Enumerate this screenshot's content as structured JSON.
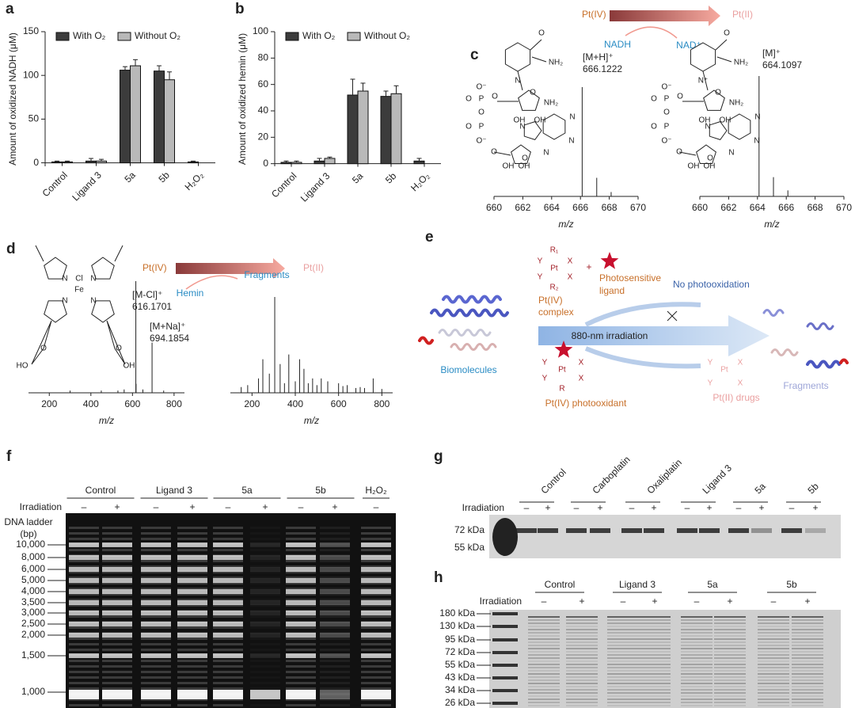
{
  "chart_data": [
    {
      "panel": "a",
      "type": "bar",
      "ylabel": "Amount of oxidized NADH (μM)",
      "categories": [
        "Control",
        "Ligand 3",
        "5a",
        "5b",
        "H₂O₂"
      ],
      "series": [
        {
          "name": "With O₂",
          "color": "#3c3c3c",
          "values": [
            1,
            2,
            106,
            105,
            1
          ],
          "errors": [
            1,
            3,
            4,
            6,
            1
          ]
        },
        {
          "name": "Without O₂",
          "color": "#b9b9b9",
          "values": [
            1,
            2,
            111,
            95,
            null
          ],
          "errors": [
            1,
            2,
            7,
            9,
            null
          ]
        }
      ],
      "ylim": [
        -4,
        150
      ],
      "yticks": [
        0,
        50,
        100,
        150
      ],
      "legend": "top"
    },
    {
      "panel": "b",
      "type": "bar",
      "ylabel": "Amount of oxidized hemin (μM)",
      "categories": [
        "Control",
        "Ligand 3",
        "5a",
        "5b",
        "H₂O₂"
      ],
      "series": [
        {
          "name": "With O₂",
          "color": "#3c3c3c",
          "values": [
            1,
            2,
            52,
            51,
            2
          ],
          "errors": [
            1,
            2,
            12,
            4,
            2
          ]
        },
        {
          "name": "Without O₂",
          "color": "#b9b9b9",
          "values": [
            1,
            4,
            55,
            53,
            null
          ],
          "errors": [
            1,
            1,
            6,
            6,
            null
          ]
        }
      ],
      "ylim": [
        -2,
        100
      ],
      "yticks": [
        0,
        20,
        40,
        60,
        80,
        100
      ],
      "legend": "top"
    },
    {
      "panel": "c",
      "type": "stem",
      "x": [
        666.12,
        667.13,
        668.13
      ],
      "values": [
        100,
        17,
        4
      ],
      "xlim": [
        660,
        670
      ],
      "xticks": [
        660,
        662,
        664,
        666,
        668,
        670
      ],
      "xlabel": "m/z",
      "annotations": [
        {
          "ion": "[M+H]⁺",
          "mz": 666.1222
        }
      ]
    },
    {
      "type": "stem",
      "x": [
        664.11,
        665.11,
        666.11
      ],
      "values": [
        100,
        16,
        5
      ],
      "xlim": [
        660,
        670
      ],
      "xticks": [
        660,
        662,
        664,
        666,
        668,
        670
      ],
      "xlabel": "m/z",
      "annotations": [
        {
          "ion": "[M]⁺",
          "mz": 664.1097
        }
      ]
    },
    {
      "panel": "d",
      "type": "stem",
      "x": [
        616.17,
        617.17,
        694.19,
        300,
        450,
        530,
        560,
        650,
        750
      ],
      "values": [
        100,
        8,
        45,
        2,
        2,
        2,
        3,
        3,
        2
      ],
      "xlim": [
        100,
        850
      ],
      "xticks": [
        200,
        400,
        600,
        800
      ],
      "xlabel": "m/z",
      "annotations": [
        {
          "ion": "[M-Cl]⁺",
          "mz": 616.1701
        },
        {
          "ion": "[M+Na]⁺",
          "mz": 694.1854
        }
      ]
    },
    {
      "type": "stem",
      "x": [
        150,
        180,
        230,
        250,
        280,
        305,
        330,
        350,
        370,
        400,
        420,
        440,
        460,
        480,
        500,
        520,
        550,
        600,
        620,
        640,
        680,
        700,
        720,
        760,
        800
      ],
      "values": [
        6,
        8,
        15,
        35,
        20,
        100,
        30,
        10,
        40,
        12,
        35,
        25,
        10,
        15,
        8,
        15,
        12,
        10,
        7,
        8,
        5,
        6,
        5,
        15,
        4
      ],
      "xlim": [
        100,
        850
      ],
      "xticks": [
        200,
        400,
        600,
        800
      ],
      "xlabel": "m/z"
    }
  ],
  "panel_c": {
    "oxidant": "Pt(IV)",
    "reduced": "Pt(II)",
    "substrate": "NADH",
    "product": "NAD⁺",
    "nadh_atoms": [
      "O",
      "NH₂",
      "N",
      "O",
      "O⁻",
      "O",
      "P",
      "O",
      "O",
      "O",
      "P",
      "O⁻",
      "O",
      "OH",
      "OH",
      "NH₂",
      "N",
      "N",
      "N",
      "N",
      "O",
      "OH",
      "OH"
    ],
    "nad_atoms": [
      "O",
      "NH₂",
      "N⁺",
      "O",
      "O⁻",
      "O",
      "P",
      "O",
      "O",
      "O",
      "P",
      "O⁻",
      "O",
      "OH",
      "OH",
      "NH₂",
      "N",
      "N",
      "N",
      "N",
      "O",
      "OH",
      "OH"
    ]
  },
  "panel_d": {
    "oxidant": "Pt(IV)",
    "reduced": "Pt(II)",
    "substrate": "Hemin",
    "product": "Fragments",
    "hemin_atoms": [
      "Cl",
      "Fe",
      "N",
      "N",
      "N",
      "N",
      "HO",
      "O",
      "O",
      "OH"
    ]
  },
  "panel_e": {
    "label": "e",
    "complex_atoms": [
      "R₁",
      "Y",
      "Pt",
      "X",
      "Y",
      "X",
      "R₂"
    ],
    "plus": "+",
    "ligand_name": [
      "Photosensitive",
      "ligand"
    ],
    "complex_name": [
      "Pt(IV)",
      "complex"
    ],
    "no_reaction": "No photooxidation",
    "light": "880-nm irradiation",
    "biomolecules": "Biomolecules",
    "oxidant_atoms": [
      "Y",
      "Pt",
      "X",
      "Y",
      "X",
      "R"
    ],
    "oxidant_name": "Pt(IV) photooxidant",
    "drug_atoms": [
      "Y",
      "Pt",
      "X",
      "Y",
      "X"
    ],
    "drug_name": "Pt(II) drugs",
    "fragments": "Fragments"
  },
  "panel_f": {
    "label": "f",
    "groups": [
      "Control",
      "Ligand 3",
      "5a",
      "5b",
      "H₂O₂"
    ],
    "irradiation": "Irradiation",
    "signs": [
      "–",
      "+",
      "–",
      "+",
      "–",
      "+",
      "–",
      "+",
      "–"
    ],
    "ladder_title": [
      "DNA ladder",
      "(bp)"
    ],
    "ladder": [
      "10,000",
      "8,000",
      "6,000",
      "5,000",
      "4,000",
      "3,500",
      "3,000",
      "2,500",
      "2,000",
      "1,500",
      "1,000"
    ]
  },
  "panel_g": {
    "label": "g",
    "groups": [
      "Control",
      "Carboplatin",
      "Oxaliplatin",
      "Ligand 3",
      "5a",
      "5b"
    ],
    "irradiation": "Irradiation",
    "signs": [
      "–",
      "+",
      "–",
      "+",
      "–",
      "+",
      "–",
      "+",
      "–",
      "+",
      "–",
      "+"
    ],
    "markers": [
      "72 kDa",
      "55 kDa"
    ]
  },
  "panel_h": {
    "label": "h",
    "groups": [
      "Control",
      "Ligand 3",
      "5a",
      "5b"
    ],
    "irradiation": "Irradiation",
    "signs": [
      "–",
      "+",
      "–",
      "+",
      "–",
      "+",
      "–",
      "+"
    ],
    "markers": [
      "180 kDa",
      "130 kDa",
      "95 kDa",
      "72 kDa",
      "55 kDa",
      "43 kDa",
      "34 kDa",
      "26 kDa"
    ]
  }
}
